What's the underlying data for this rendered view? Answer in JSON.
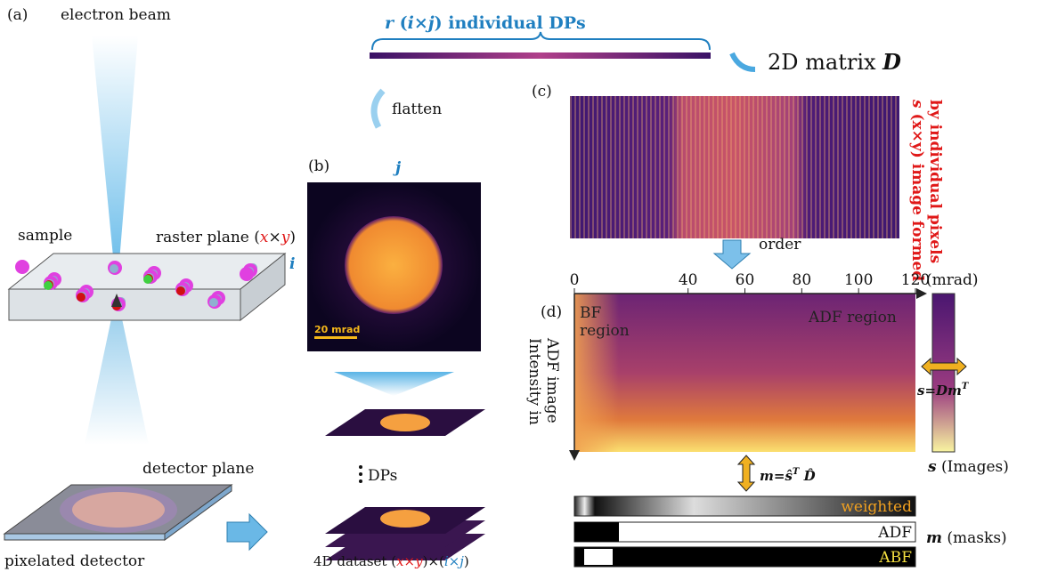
{
  "panel_a": {
    "label": "(a)",
    "beam": "electron beam",
    "sample": "sample",
    "raster": [
      "raster plane (",
      "x",
      "×",
      "y",
      ")"
    ],
    "detector_plane": "detector plane",
    "pixelated": "pixelated detector"
  },
  "panel_b": {
    "label": "(b)",
    "j": "j",
    "i": "i",
    "scale_bar": "20 mrad",
    "dps": "DPs",
    "dataset": [
      "4D dataset (",
      "x×y",
      ")×(",
      "i×j",
      ")"
    ]
  },
  "flatten": {
    "individual": [
      "r",
      " (",
      "i",
      "×",
      "j",
      ") individual DPs"
    ],
    "flatten": "flatten",
    "matrix": [
      "2D matrix ",
      "D"
    ]
  },
  "panel_c": {
    "label": "(c)",
    "side_text": [
      "s",
      " (x×y) image formed",
      "by individual pixels"
    ],
    "order": "order"
  },
  "panel_d": {
    "label": "(d)",
    "axis": {
      "xlim": [
        0,
        120
      ],
      "xticks": [
        0,
        40,
        60,
        80,
        100,
        120
      ],
      "unit": "(mrad)"
    },
    "bf": [
      "BF",
      "region"
    ],
    "adf": "ADF region",
    "ylabel": [
      "Intensity in",
      "ADF image"
    ],
    "relation_s": [
      "s=Dm",
      "T"
    ],
    "s_images": [
      "s",
      " (Images)"
    ],
    "relation_m": [
      "m=ŝ",
      "T",
      " D̂"
    ],
    "masks": [
      "weighted",
      "ADF",
      "ABF"
    ],
    "m_masks": [
      "m",
      " (masks)"
    ]
  }
}
